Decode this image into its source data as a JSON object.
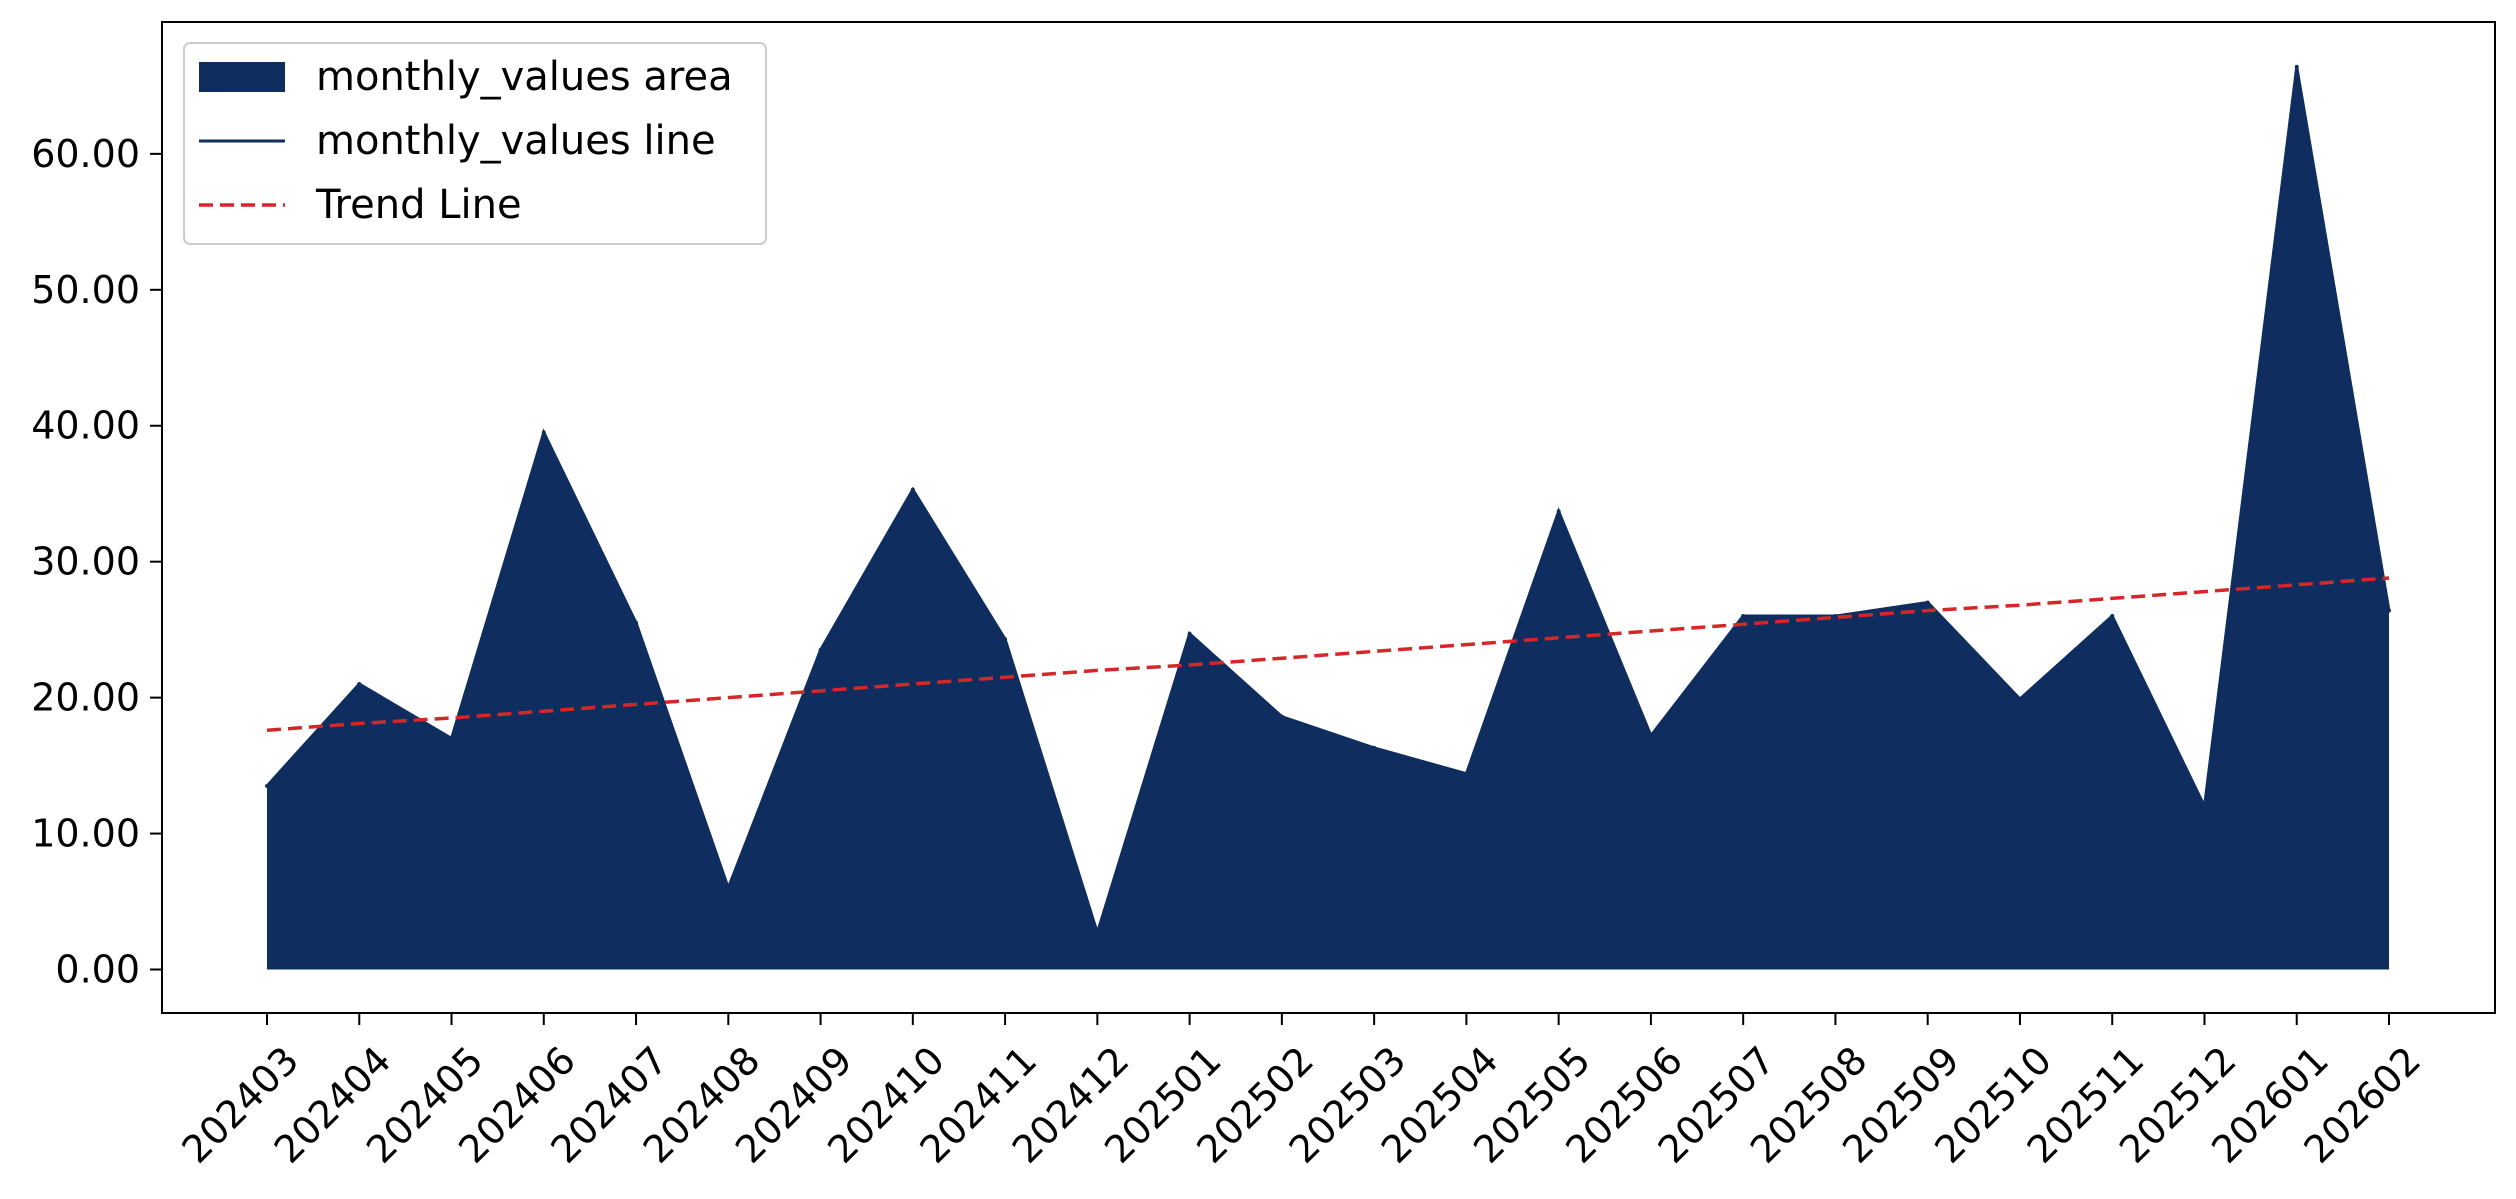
{
  "chart_data": {
    "type": "area",
    "title": "",
    "xlabel": "",
    "ylabel": "",
    "categories": [
      "202403",
      "202404",
      "202405",
      "202406",
      "202407",
      "202408",
      "202409",
      "202410",
      "202411",
      "202412",
      "202501",
      "202502",
      "202503",
      "202504",
      "202505",
      "202506",
      "202507",
      "202508",
      "202509",
      "202510",
      "202511",
      "202512",
      "202601",
      "202602"
    ],
    "series": [
      {
        "name": "monthly_values area",
        "kind": "area",
        "color": "#0f2d5e",
        "values": [
          13.5,
          21.0,
          17.0,
          39.5,
          25.5,
          6.0,
          23.5,
          35.3,
          24.3,
          2.7,
          24.7,
          18.6,
          16.3,
          14.4,
          33.7,
          17.2,
          26.0,
          26.0,
          27.0,
          19.9,
          26.0,
          12.0,
          66.4,
          26.4
        ]
      },
      {
        "name": "monthly_values line",
        "kind": "line",
        "color": "#0f2d5e",
        "values": [
          13.5,
          21.0,
          17.0,
          39.5,
          25.5,
          6.0,
          23.5,
          35.3,
          24.3,
          2.7,
          24.7,
          18.6,
          16.3,
          14.4,
          33.7,
          17.2,
          26.0,
          26.0,
          27.0,
          19.9,
          26.0,
          12.0,
          66.4,
          26.4
        ]
      },
      {
        "name": "Trend Line",
        "kind": "trend",
        "color": "#d62728",
        "dashed": true,
        "values": [
          17.6,
          18.1,
          18.5,
          19.0,
          19.5,
          20.0,
          20.5,
          21.0,
          21.5,
          22.0,
          22.4,
          22.9,
          23.4,
          23.9,
          24.4,
          24.9,
          25.4,
          25.9,
          26.4,
          26.8,
          27.3,
          27.8,
          28.3,
          28.8
        ]
      }
    ],
    "yticks": [
      "0.00",
      "10.00",
      "20.00",
      "30.00",
      "40.00",
      "50.00",
      "60.00"
    ],
    "ylim": [
      -3.2,
      69.7
    ],
    "grid": false,
    "legend": "top-left"
  }
}
